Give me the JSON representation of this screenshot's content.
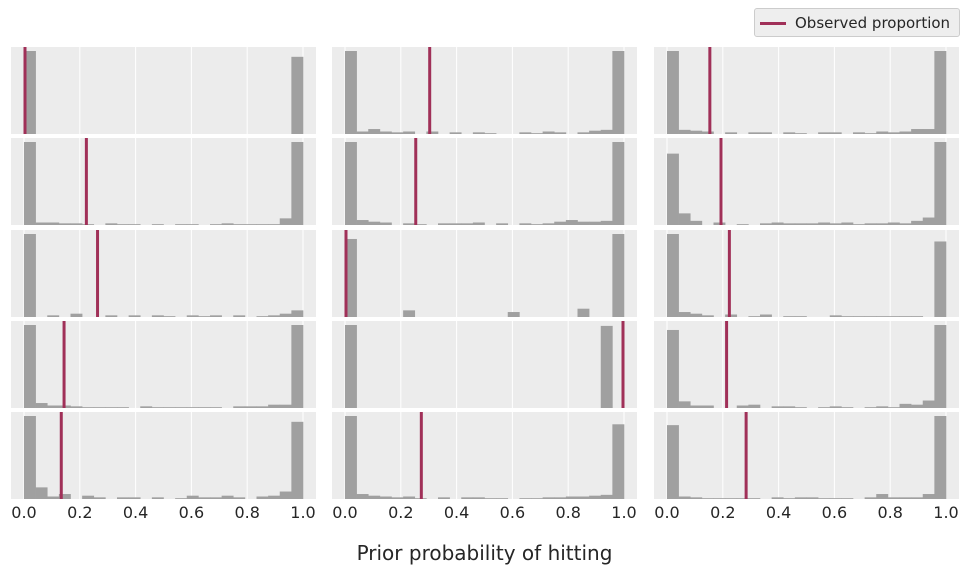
{
  "chart_data": {
    "type": "bar",
    "xlabel": "Prior probability of hitting",
    "legend": {
      "label": "Observed proportion",
      "placement": "top-right",
      "color": "#a03058"
    },
    "colors": {
      "bar": "#a0a0a0",
      "panel_bg": "#ececec",
      "grid": "#ffffff",
      "observed_line": "#a03058"
    },
    "grid": true,
    "xlim": [
      0,
      1
    ],
    "xticks": [
      "0.0",
      "0.2",
      "0.4",
      "0.6",
      "0.8",
      "1.0"
    ],
    "bins": 24,
    "layout": {
      "rows": 5,
      "cols": 3
    },
    "panels": [
      {
        "observed": 0.0,
        "counts": [
          100,
          0,
          0,
          0,
          0,
          0,
          0,
          0,
          0,
          0,
          0,
          0,
          0,
          0,
          0,
          0,
          0,
          0,
          0,
          0,
          0,
          0,
          0,
          93
        ]
      },
      {
        "observed": 0.3,
        "counts": [
          100,
          3,
          6,
          3,
          2,
          3,
          0,
          3,
          0,
          2,
          0,
          2,
          1,
          0,
          0,
          2,
          1,
          3,
          2,
          0,
          2,
          4,
          5,
          100
        ]
      },
      {
        "observed": 0.15,
        "counts": [
          100,
          5,
          4,
          3,
          0,
          2,
          0,
          2,
          2,
          0,
          2,
          1,
          0,
          2,
          2,
          0,
          2,
          1,
          3,
          2,
          3,
          6,
          6,
          100
        ]
      },
      {
        "observed": 0.22,
        "counts": [
          100,
          3,
          3,
          2,
          2,
          1,
          0,
          2,
          1,
          1,
          0,
          1,
          0,
          1,
          1,
          0,
          1,
          2,
          1,
          1,
          1,
          1,
          8,
          100
        ]
      },
      {
        "observed": 0.25,
        "counts": [
          100,
          6,
          4,
          3,
          0,
          2,
          1,
          0,
          2,
          2,
          2,
          3,
          0,
          2,
          0,
          2,
          1,
          2,
          4,
          6,
          4,
          4,
          5,
          100
        ]
      },
      {
        "observed": 0.19,
        "counts": [
          86,
          14,
          5,
          0,
          3,
          0,
          1,
          0,
          2,
          3,
          2,
          2,
          2,
          3,
          2,
          3,
          1,
          2,
          2,
          3,
          2,
          5,
          9,
          100
        ]
      },
      {
        "observed": 0.26,
        "counts": [
          100,
          0,
          2,
          0,
          4,
          0,
          0,
          2,
          0,
          2,
          0,
          2,
          1,
          0,
          2,
          1,
          2,
          0,
          2,
          0,
          1,
          2,
          4,
          8
        ]
      },
      {
        "observed": 0.0,
        "counts": [
          94,
          0,
          0,
          0,
          0,
          8,
          0,
          0,
          0,
          0,
          0,
          0,
          0,
          0,
          6,
          0,
          0,
          0,
          0,
          0,
          10,
          0,
          0,
          100
        ]
      },
      {
        "observed": 0.22,
        "counts": [
          100,
          6,
          4,
          2,
          0,
          3,
          0,
          1,
          3,
          0,
          1,
          1,
          0,
          0,
          2,
          1,
          1,
          1,
          1,
          1,
          1,
          1,
          0,
          91
        ]
      },
      {
        "observed": 0.14,
        "counts": [
          100,
          6,
          3,
          3,
          2,
          1,
          1,
          1,
          1,
          0,
          2,
          1,
          1,
          1,
          1,
          1,
          1,
          0,
          2,
          2,
          2,
          4,
          4,
          100
        ]
      },
      {
        "observed": 1.0,
        "counts": [
          93,
          0,
          0,
          0,
          0,
          0,
          0,
          0,
          0,
          0,
          0,
          0,
          0,
          0,
          0,
          0,
          0,
          0,
          0,
          0,
          0,
          0,
          92,
          0
        ]
      },
      {
        "observed": 0.21,
        "counts": [
          94,
          8,
          3,
          3,
          0,
          0,
          3,
          4,
          0,
          2,
          2,
          1,
          0,
          1,
          2,
          1,
          0,
          1,
          2,
          1,
          5,
          4,
          9,
          100
        ]
      },
      {
        "observed": 0.13,
        "counts": [
          100,
          14,
          3,
          6,
          0,
          4,
          2,
          0,
          2,
          2,
          0,
          2,
          0,
          1,
          4,
          2,
          2,
          4,
          2,
          0,
          3,
          4,
          9,
          93
        ]
      },
      {
        "observed": 0.27,
        "counts": [
          100,
          6,
          4,
          3,
          2,
          3,
          1,
          0,
          2,
          0,
          2,
          2,
          1,
          1,
          0,
          1,
          1,
          2,
          2,
          3,
          3,
          4,
          5,
          90
        ]
      },
      {
        "observed": 0.28,
        "counts": [
          89,
          3,
          2,
          1,
          1,
          1,
          1,
          1,
          0,
          2,
          1,
          2,
          2,
          1,
          1,
          1,
          0,
          2,
          6,
          2,
          2,
          2,
          6,
          100
        ]
      }
    ]
  }
}
